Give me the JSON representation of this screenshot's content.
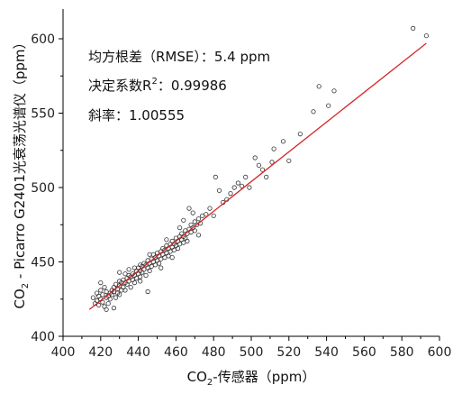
{
  "chart_data": {
    "type": "scatter",
    "title": "",
    "xlabel": "CO2-传感器（ppm）",
    "ylabel": "CO2 - Picarro G2401光衰荡光谱仪（ppm）",
    "xlabel_parts": {
      "pre": "CO",
      "sub": "2",
      "post": "-传感器（ppm）"
    },
    "ylabel_parts": {
      "pre": "CO",
      "sub": "2",
      "post": " - Picarro G2401光衰荡光谱仪（ppm）"
    },
    "xlim": [
      400,
      600
    ],
    "ylim": [
      400,
      620
    ],
    "x_ticks": [
      400,
      420,
      440,
      460,
      480,
      500,
      520,
      540,
      560,
      580,
      600
    ],
    "y_ticks": [
      400,
      450,
      500,
      550,
      600
    ],
    "grid": false,
    "annotations": {
      "rmse": "均方根差（RMSE）：5.4 ppm",
      "r2_pre": "决定系数R",
      "r2_sup": "2",
      "r2_post": "：0.99986",
      "slope": "斜率：1.00555"
    },
    "fit_line": {
      "x": [
        414,
        593
      ],
      "y": [
        418,
        597
      ],
      "color": "#d62728"
    },
    "point_color": "#333333",
    "points": [
      [
        416,
        426
      ],
      [
        417,
        422
      ],
      [
        418,
        429
      ],
      [
        418,
        424
      ],
      [
        419,
        427
      ],
      [
        419,
        421
      ],
      [
        420,
        431
      ],
      [
        420,
        425
      ],
      [
        421,
        423
      ],
      [
        421,
        428
      ],
      [
        422,
        420
      ],
      [
        422,
        433
      ],
      [
        423,
        426
      ],
      [
        423,
        430
      ],
      [
        424,
        422
      ],
      [
        424,
        427
      ],
      [
        425,
        425
      ],
      [
        425,
        429
      ],
      [
        426,
        431
      ],
      [
        426,
        428
      ],
      [
        427,
        433
      ],
      [
        427,
        430
      ],
      [
        428,
        426
      ],
      [
        428,
        435
      ],
      [
        429,
        432
      ],
      [
        429,
        429
      ],
      [
        430,
        434
      ],
      [
        430,
        437
      ],
      [
        431,
        431
      ],
      [
        431,
        436
      ],
      [
        432,
        433
      ],
      [
        432,
        438
      ],
      [
        433,
        436
      ],
      [
        433,
        431
      ],
      [
        434,
        439
      ],
      [
        434,
        435
      ],
      [
        435,
        437
      ],
      [
        435,
        441
      ],
      [
        436,
        433
      ],
      [
        436,
        440
      ],
      [
        437,
        438
      ],
      [
        437,
        442
      ],
      [
        438,
        436
      ],
      [
        438,
        441
      ],
      [
        439,
        444
      ],
      [
        439,
        439
      ],
      [
        440,
        442
      ],
      [
        440,
        446
      ],
      [
        441,
        440
      ],
      [
        441,
        444
      ],
      [
        442,
        447
      ],
      [
        442,
        443
      ],
      [
        443,
        445
      ],
      [
        443,
        449
      ],
      [
        444,
        441
      ],
      [
        444,
        448
      ],
      [
        445,
        446
      ],
      [
        445,
        451
      ],
      [
        446,
        444
      ],
      [
        446,
        449
      ],
      [
        447,
        452
      ],
      [
        447,
        447
      ],
      [
        448,
        450
      ],
      [
        448,
        455
      ],
      [
        449,
        448
      ],
      [
        449,
        453
      ],
      [
        450,
        451
      ],
      [
        450,
        456
      ],
      [
        451,
        449
      ],
      [
        451,
        454
      ],
      [
        452,
        457
      ],
      [
        452,
        452
      ],
      [
        453,
        455
      ],
      [
        453,
        459
      ],
      [
        454,
        453
      ],
      [
        454,
        458
      ],
      [
        455,
        456
      ],
      [
        455,
        461
      ],
      [
        456,
        454
      ],
      [
        456,
        459
      ],
      [
        457,
        462
      ],
      [
        457,
        457
      ],
      [
        458,
        460
      ],
      [
        458,
        464
      ],
      [
        459,
        458
      ],
      [
        459,
        462
      ],
      [
        460,
        461
      ],
      [
        460,
        466
      ],
      [
        461,
        459
      ],
      [
        461,
        464
      ],
      [
        462,
        467
      ],
      [
        462,
        462
      ],
      [
        463,
        465
      ],
      [
        463,
        469
      ],
      [
        464,
        463
      ],
      [
        464,
        467
      ],
      [
        465,
        466
      ],
      [
        465,
        471
      ],
      [
        466,
        464
      ],
      [
        466,
        469
      ],
      [
        467,
        472
      ],
      [
        468,
        470
      ],
      [
        468,
        475
      ],
      [
        469,
        473
      ],
      [
        470,
        471
      ],
      [
        470,
        477
      ],
      [
        471,
        475
      ],
      [
        472,
        479
      ],
      [
        473,
        476
      ],
      [
        474,
        481
      ],
      [
        420,
        436
      ],
      [
        423,
        418
      ],
      [
        430,
        428
      ],
      [
        435,
        445
      ],
      [
        441,
        437
      ],
      [
        446,
        455
      ],
      [
        452,
        446
      ],
      [
        455,
        465
      ],
      [
        458,
        453
      ],
      [
        462,
        473
      ],
      [
        441,
        448
      ],
      [
        430,
        443
      ],
      [
        445,
        430
      ],
      [
        472,
        468
      ],
      [
        469,
        483
      ],
      [
        467,
        486
      ],
      [
        464,
        478
      ],
      [
        427,
        419
      ],
      [
        433,
        442
      ],
      [
        438,
        446
      ],
      [
        476,
        482
      ],
      [
        478,
        486
      ],
      [
        480,
        481
      ],
      [
        481,
        507
      ],
      [
        483,
        498
      ],
      [
        485,
        490
      ],
      [
        487,
        492
      ],
      [
        489,
        496
      ],
      [
        491,
        500
      ],
      [
        493,
        503
      ],
      [
        495,
        501
      ],
      [
        497,
        507
      ],
      [
        499,
        500
      ],
      [
        502,
        520
      ],
      [
        504,
        515
      ],
      [
        506,
        512
      ],
      [
        508,
        507
      ],
      [
        511,
        517
      ],
      [
        512,
        526
      ],
      [
        517,
        531
      ],
      [
        520,
        518
      ],
      [
        526,
        536
      ],
      [
        533,
        551
      ],
      [
        536,
        568
      ],
      [
        541,
        555
      ],
      [
        544,
        565
      ],
      [
        586,
        607
      ],
      [
        593,
        602
      ]
    ]
  }
}
